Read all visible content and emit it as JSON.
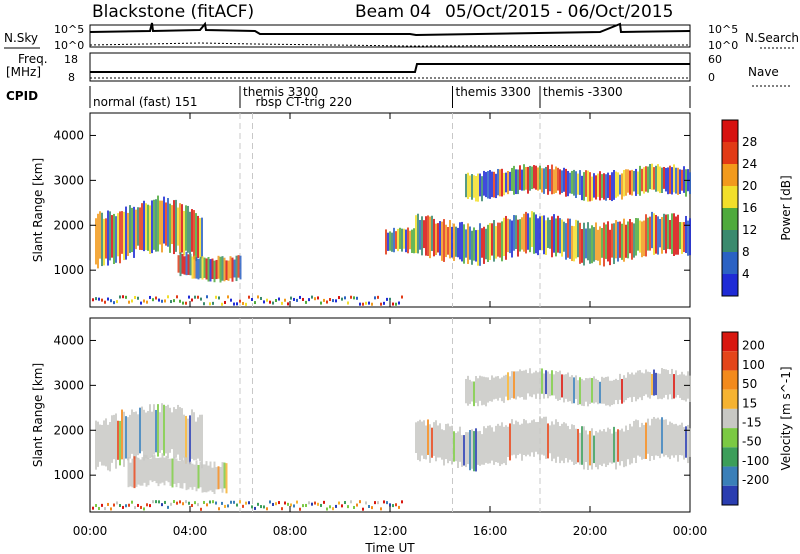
{
  "header": {
    "station": "Blackstone (fitACF)",
    "beam": "Beam 04",
    "dates": "05/Oct/2015 - 06/Oct/2015"
  },
  "top_panels": {
    "nsky_label": "N.Sky",
    "nsearch_label": "N.Search",
    "freq_label": "Freq.",
    "freq_unit": "[MHz]",
    "nave_label": "Nave",
    "cpid_label": "CPID",
    "noise_ticks_left": [
      "10^5",
      "10^0"
    ],
    "noise_ticks_right": [
      "10^5",
      "10^0"
    ],
    "freq_ticks": [
      "18",
      "8"
    ],
    "nave_ticks": [
      "60",
      "0"
    ]
  },
  "cpid_segments": [
    {
      "label": "normal (fast) 151",
      "start_h": 0,
      "row": 2
    },
    {
      "label": "themis 3300",
      "start_h": 6.0,
      "row": 1
    },
    {
      "label": "rbsp CT-trig 220",
      "start_h": 6.5,
      "row": 2
    },
    {
      "label": "themis 3300",
      "start_h": 14.5,
      "row": 1
    },
    {
      "label": "themis -3300",
      "start_h": 18.0,
      "row": 1
    }
  ],
  "x_axis": {
    "label": "Time UT",
    "ticks": [
      "00:00",
      "04:00",
      "08:00",
      "12:00",
      "16:00",
      "20:00",
      "00:00"
    ],
    "range_h": [
      0,
      24
    ]
  },
  "chart_data": [
    {
      "type": "heatmap",
      "name": "power",
      "ylabel": "Slant Range [km]",
      "yticks": [
        1000,
        2000,
        3000,
        4000
      ],
      "ylim": [
        180,
        4500
      ],
      "colorbar_label": "Power [dB]",
      "colorbar_ticks": [
        "4",
        "8",
        "12",
        "16",
        "20",
        "24",
        "28"
      ],
      "colors": [
        "#1f2bd6",
        "#2b62c4",
        "#3a8a6e",
        "#4faa3c",
        "#f2df2a",
        "#f29a1c",
        "#e23a16",
        "#d7110f"
      ],
      "echo_bands_range_km": [
        {
          "x": [
            0.2,
            4.5
          ],
          "range": [
            1200,
            2500
          ]
        },
        {
          "x": [
            3.5,
            6.0
          ],
          "range": [
            800,
            1400
          ]
        },
        {
          "x": [
            11.8,
            13.0
          ],
          "range": [
            1300,
            1900
          ]
        },
        {
          "x": [
            13.0,
            24.0
          ],
          "range": [
            1200,
            2200
          ]
        },
        {
          "x": [
            15.0,
            24.0
          ],
          "range": [
            2600,
            3300
          ]
        }
      ]
    },
    {
      "type": "heatmap",
      "name": "velocity",
      "ylabel": "Slant Range [km]",
      "yticks": [
        1000,
        2000,
        3000,
        4000
      ],
      "ylim": [
        180,
        4500
      ],
      "colorbar_label": "Velocity [m s^-1]",
      "colorbar_ticks": [
        "200",
        "100",
        "50",
        "15",
        "-15",
        "-50",
        "-100",
        "-200"
      ],
      "colors": [
        "#2a3db0",
        "#3a7fb8",
        "#3c9e5a",
        "#7bc943",
        "#c8c8c4",
        "#f6b331",
        "#f28a1c",
        "#e4451a",
        "#d8170f"
      ],
      "echo_bands_range_km": [
        {
          "x": [
            0.2,
            4.5
          ],
          "range": [
            1200,
            2500
          ]
        },
        {
          "x": [
            1.5,
            5.5
          ],
          "range": [
            650,
            1400
          ]
        },
        {
          "x": [
            13.0,
            24.0
          ],
          "range": [
            1200,
            2200
          ]
        },
        {
          "x": [
            15.0,
            24.0
          ],
          "range": [
            2600,
            3300
          ]
        }
      ]
    }
  ]
}
